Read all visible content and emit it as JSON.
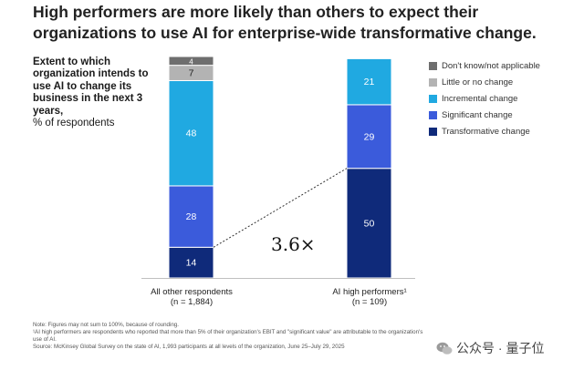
{
  "title": "High performers are more likely than others to expect their organizations to use AI for enterprise-wide transformative change.",
  "subtitle_bold": "Extent to which organization intends to use AI to change its business in the next 3 years,",
  "subtitle_unit": "% of respondents",
  "colors": {
    "dont_know": "#6e6e6e",
    "little": "#b3b3b3",
    "incremental": "#20a9e1",
    "significant": "#3b5bdb",
    "transformative": "#0f2a7a"
  },
  "chart_data": {
    "type": "bar",
    "stacked": true,
    "categories": [
      "All other respondents",
      "AI high performers"
    ],
    "category_labels": [
      {
        "name": "All other respondents",
        "n": "(n = 1,884)"
      },
      {
        "name": "AI high performers¹",
        "n": "(n = 109)"
      }
    ],
    "series": [
      {
        "name": "Transformative change",
        "color": "#0f2a7a",
        "values": [
          14,
          50
        ]
      },
      {
        "name": "Significant change",
        "color": "#3b5bdb",
        "values": [
          28,
          29
        ]
      },
      {
        "name": "Incremental change",
        "color": "#20a9e1",
        "values": [
          48,
          21
        ]
      },
      {
        "name": "Little or no change",
        "color": "#b3b3b3",
        "values": [
          7,
          0
        ]
      },
      {
        "name": "Don't know/not applicable",
        "color": "#6e6e6e",
        "values": [
          4,
          0
        ]
      }
    ],
    "ylim": [
      0,
      101
    ],
    "annotation": "3.6×"
  },
  "legend": [
    {
      "label": "Don't know/not applicable",
      "color": "#6e6e6e"
    },
    {
      "label": "Little or no change",
      "color": "#b3b3b3"
    },
    {
      "label": "Incremental change",
      "color": "#20a9e1"
    },
    {
      "label": "Significant change",
      "color": "#3b5bdb"
    },
    {
      "label": "Transformative change",
      "color": "#0f2a7a"
    }
  ],
  "notes": [
    "Note: Figures may not sum to 100%, because of rounding.",
    "¹AI high performers are respondents who reported that more than 5% of their organization's EBIT and \"significant value\" are attributable to the organization's",
    "  use of AI.",
    "Source: McKinsey Global Survey on the state of AI, 1,993 participants at all levels of the organization, June 25–July 29, 2025"
  ],
  "watermark": "公众号 · 量子位"
}
